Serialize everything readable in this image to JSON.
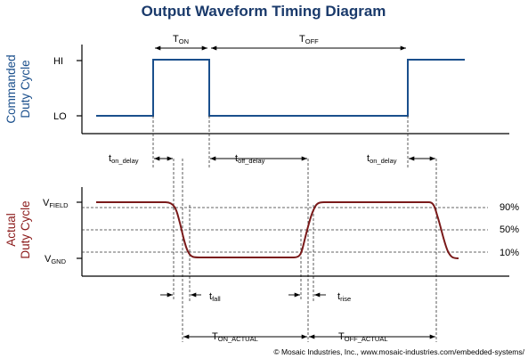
{
  "title": "Output Waveform Timing Diagram",
  "axes": {
    "commanded_label_line1": "Commanded",
    "commanded_label_line2": "Duty Cycle",
    "actual_label_line1": "Actual",
    "actual_label_line2": "Duty Cycle",
    "hi": "HI",
    "lo": "LO",
    "vfield_main": "V",
    "vfield_sub": "FIELD",
    "vgnd_main": "V",
    "vgnd_sub": "GND"
  },
  "levels": {
    "p90": "90%",
    "p50": "50%",
    "p10": "10%"
  },
  "timing": {
    "ton_main": "T",
    "ton_sub": "ON",
    "toff_main": "T",
    "toff_sub": "OFF",
    "ton_delay_1_main": "t",
    "ton_delay_1_sub": "on_delay",
    "toff_delay_main": "t",
    "toff_delay_sub": "off_delay",
    "ton_delay_2_main": "t",
    "ton_delay_2_sub": "on_delay",
    "tfall_main": "t",
    "tfall_sub": "fall",
    "trise_main": "t",
    "trise_sub": "rise",
    "ton_actual_main": "T",
    "ton_actual_sub": "ON_ACTUAL",
    "toff_actual_main": "T",
    "toff_actual_sub": "OFF_ACTUAL"
  },
  "footer": {
    "copyright": "© Mosaic Industries, Inc., www.mosaic-industries.com/embedded-systems/"
  },
  "colors": {
    "commanded": "#1a4f8c",
    "actual": "#7a1a1a",
    "title": "#1a3a6b"
  }
}
